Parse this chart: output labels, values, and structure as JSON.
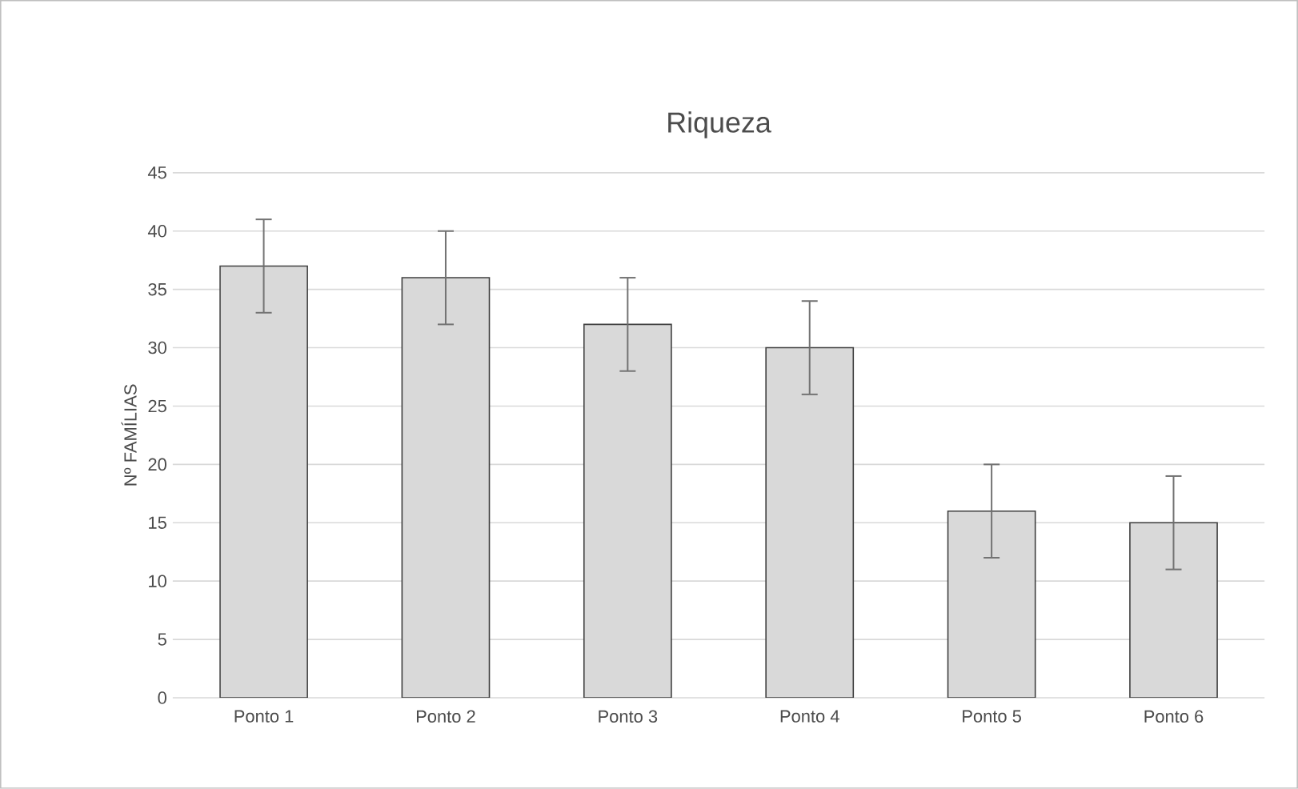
{
  "chart_data": {
    "type": "bar",
    "title": "Riqueza",
    "ylabel": "Nº FAMÍLIAS",
    "categories": [
      "Ponto 1",
      "Ponto 2",
      "Ponto 3",
      "Ponto 4",
      "Ponto 5",
      "Ponto 6"
    ],
    "values": [
      37,
      36,
      32,
      30,
      16,
      15
    ],
    "errors": [
      4,
      4,
      4,
      4,
      4,
      4
    ],
    "color": "#d9d9d9",
    "ylim": [
      0,
      45
    ],
    "yticks": [
      0,
      5,
      10,
      15,
      20,
      25,
      30,
      35,
      40,
      45
    ],
    "grid": "y"
  }
}
